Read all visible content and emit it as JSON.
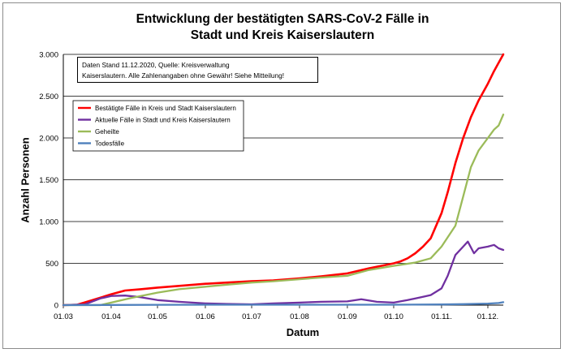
{
  "chart_data": {
    "type": "line",
    "title_line1": "Entwicklung der bestätigten SARS-CoV-2 Fälle in",
    "title_line2": "Stadt und Kreis Kaiserslautern",
    "xlabel": "Datum",
    "ylabel": "Anzahl Personen",
    "note_line1": "Daten Stand 11.12.2020, Quelle: Kreisverwaltung",
    "note_line2": "Kaiserslautern. Alle Zahlenangaben ohne Gewähr! Siehe Mitteilung!",
    "ylim": [
      0,
      3000
    ],
    "yticks": [
      0,
      500,
      1000,
      1500,
      2000,
      2500,
      3000
    ],
    "ytick_labels": [
      "0",
      "500",
      "1.000",
      "1.500",
      "2.000",
      "2.500",
      "3.000"
    ],
    "xlim": [
      "2020-03-01",
      "2020-12-11"
    ],
    "xticks": [
      "2020-03-01",
      "2020-04-01",
      "2020-05-01",
      "2020-06-01",
      "2020-07-01",
      "2020-08-01",
      "2020-09-01",
      "2020-10-01",
      "2020-11-01",
      "2020-12-01"
    ],
    "xtick_labels": [
      "01.03",
      "01.04",
      "01.05",
      "01.06",
      "01.07",
      "01.08",
      "01.09",
      "01.10",
      "01.11.",
      "01.12."
    ],
    "grid": "horizontal",
    "legend_position": "upper-left",
    "series": [
      {
        "name": "Bestätigte Fälle in Kreis und Stadt Kaiserslautern",
        "color": "#ff0000",
        "x": [
          "2020-03-01",
          "2020-03-10",
          "2020-03-20",
          "2020-04-01",
          "2020-04-10",
          "2020-04-20",
          "2020-05-01",
          "2020-05-15",
          "2020-06-01",
          "2020-06-15",
          "2020-07-01",
          "2020-07-15",
          "2020-08-01",
          "2020-08-15",
          "2020-09-01",
          "2020-09-15",
          "2020-10-01",
          "2020-10-05",
          "2020-10-10",
          "2020-10-15",
          "2020-10-20",
          "2020-10-25",
          "2020-11-01",
          "2020-11-05",
          "2020-11-10",
          "2020-11-15",
          "2020-11-20",
          "2020-11-25",
          "2020-12-01",
          "2020-12-05",
          "2020-12-08",
          "2020-12-11"
        ],
        "y": [
          0,
          5,
          60,
          130,
          175,
          190,
          210,
          230,
          255,
          270,
          285,
          295,
          320,
          345,
          380,
          440,
          500,
          520,
          560,
          620,
          700,
          800,
          1100,
          1350,
          1700,
          2000,
          2250,
          2450,
          2650,
          2800,
          2900,
          3000
        ]
      },
      {
        "name": "Aktuelle Fälle in Stadt und Kreis Kaiserslautern",
        "color": "#7030a0",
        "x": [
          "2020-03-01",
          "2020-03-15",
          "2020-03-25",
          "2020-04-01",
          "2020-04-10",
          "2020-04-20",
          "2020-05-01",
          "2020-05-15",
          "2020-06-01",
          "2020-06-15",
          "2020-07-01",
          "2020-07-15",
          "2020-08-01",
          "2020-08-15",
          "2020-09-01",
          "2020-09-10",
          "2020-09-20",
          "2020-10-01",
          "2020-10-10",
          "2020-10-20",
          "2020-10-25",
          "2020-11-01",
          "2020-11-05",
          "2020-11-10",
          "2020-11-15",
          "2020-11-18",
          "2020-11-22",
          "2020-11-25",
          "2020-12-01",
          "2020-12-05",
          "2020-12-08",
          "2020-12-11"
        ],
        "y": [
          0,
          10,
          80,
          110,
          115,
          95,
          60,
          40,
          20,
          15,
          10,
          20,
          30,
          40,
          45,
          70,
          40,
          30,
          60,
          100,
          120,
          200,
          350,
          600,
          700,
          760,
          620,
          680,
          700,
          720,
          680,
          660
        ]
      },
      {
        "name": "Geheilte",
        "color": "#9bbb59",
        "x": [
          "2020-03-01",
          "2020-03-25",
          "2020-04-01",
          "2020-04-15",
          "2020-05-01",
          "2020-05-15",
          "2020-06-01",
          "2020-06-15",
          "2020-07-01",
          "2020-07-15",
          "2020-08-01",
          "2020-08-15",
          "2020-09-01",
          "2020-09-15",
          "2020-10-01",
          "2020-10-15",
          "2020-10-25",
          "2020-11-01",
          "2020-11-10",
          "2020-11-15",
          "2020-11-20",
          "2020-11-25",
          "2020-12-01",
          "2020-12-05",
          "2020-12-08",
          "2020-12-11"
        ],
        "y": [
          0,
          0,
          30,
          90,
          150,
          190,
          220,
          245,
          270,
          285,
          310,
          330,
          350,
          420,
          470,
          510,
          560,
          700,
          950,
          1300,
          1650,
          1850,
          2000,
          2100,
          2150,
          2280
        ]
      },
      {
        "name": "Todesfälle",
        "color": "#4f81bd",
        "x": [
          "2020-03-01",
          "2020-04-01",
          "2020-05-01",
          "2020-06-01",
          "2020-07-01",
          "2020-08-01",
          "2020-09-01",
          "2020-10-01",
          "2020-11-01",
          "2020-11-15",
          "2020-12-01",
          "2020-12-08",
          "2020-12-11"
        ],
        "y": [
          0,
          2,
          4,
          5,
          5,
          5,
          5,
          5,
          8,
          12,
          18,
          25,
          35
        ]
      }
    ]
  }
}
